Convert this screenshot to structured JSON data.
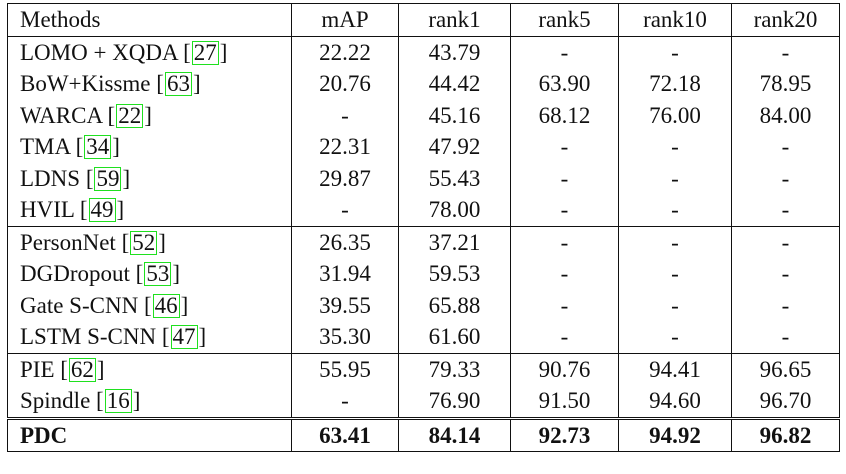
{
  "table": {
    "columns": [
      "Methods",
      "mAP",
      "rank1",
      "rank5",
      "rank10",
      "rank20"
    ],
    "groups": [
      [
        {
          "name": "LOMO + XQDA",
          "ref": "27",
          "values": [
            "22.22",
            "43.79",
            "-",
            "-",
            "-"
          ]
        },
        {
          "name": "BoW+Kissme",
          "ref": "63",
          "values": [
            "20.76",
            "44.42",
            "63.90",
            "72.18",
            "78.95"
          ]
        },
        {
          "name": "WARCA",
          "ref": "22",
          "values": [
            "-",
            "45.16",
            "68.12",
            "76.00",
            "84.00"
          ]
        },
        {
          "name": "TMA",
          "ref": "34",
          "values": [
            "22.31",
            "47.92",
            "-",
            "-",
            "-"
          ]
        },
        {
          "name": "LDNS",
          "ref": "59",
          "values": [
            "29.87",
            "55.43",
            "-",
            "-",
            "-"
          ]
        },
        {
          "name": "HVIL",
          "ref": "49",
          "values": [
            "-",
            "78.00",
            "-",
            "-",
            "-"
          ]
        }
      ],
      [
        {
          "name": "PersonNet",
          "ref": "52",
          "values": [
            "26.35",
            "37.21",
            "-",
            "-",
            "-"
          ]
        },
        {
          "name": "DGDropout",
          "ref": "53",
          "values": [
            "31.94",
            "59.53",
            "-",
            "-",
            "-"
          ]
        },
        {
          "name": "Gate S-CNN",
          "ref": "46",
          "values": [
            "39.55",
            "65.88",
            "-",
            "-",
            "-"
          ]
        },
        {
          "name": "LSTM S-CNN",
          "ref": "47",
          "values": [
            "35.30",
            "61.60",
            "-",
            "-",
            "-"
          ]
        }
      ],
      [
        {
          "name": "PIE",
          "ref": "62",
          "values": [
            "55.95",
            "79.33",
            "90.76",
            "94.41",
            "96.65"
          ]
        },
        {
          "name": "Spindle",
          "ref": "16",
          "values": [
            "-",
            "76.90",
            "91.50",
            "94.60",
            "96.70"
          ]
        }
      ],
      [
        {
          "name": "PDC",
          "ref": "",
          "bold": true,
          "values": [
            "63.41",
            "84.14",
            "92.73",
            "94.92",
            "96.82"
          ]
        }
      ]
    ]
  }
}
